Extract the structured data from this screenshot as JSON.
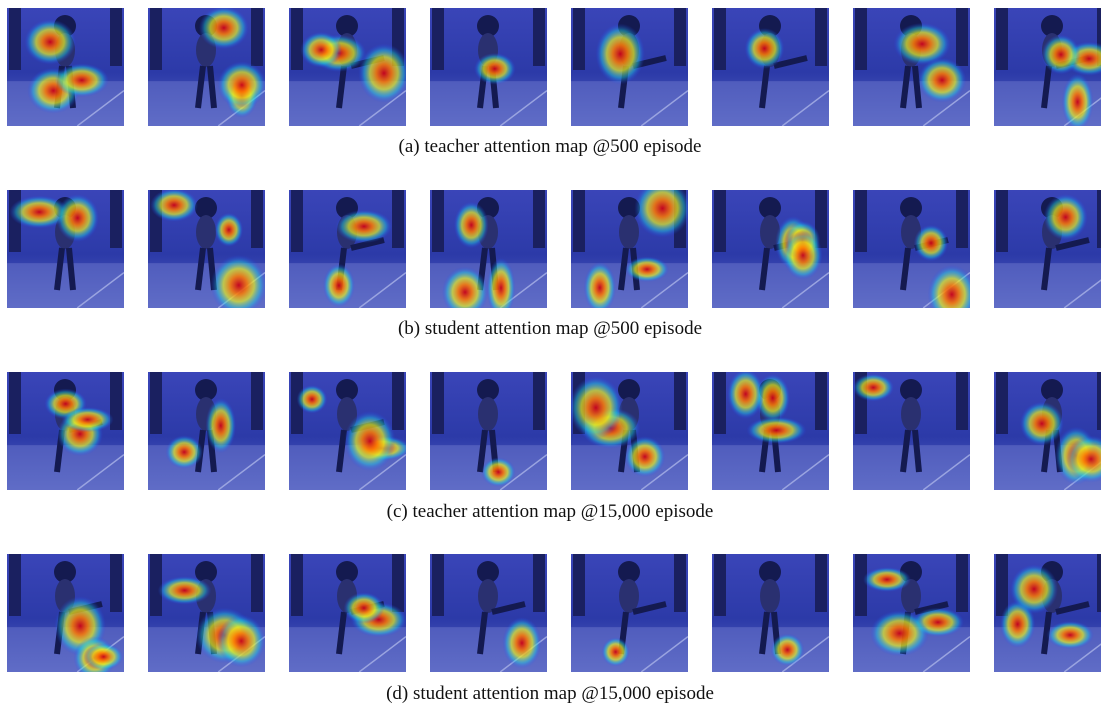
{
  "captions": [
    "(a) teacher attention map @500 episode",
    "(b) student attention map @500 episode",
    "(c) teacher attention map @15,000 episode",
    "(d) student attention map @15,000 episode"
  ]
}
